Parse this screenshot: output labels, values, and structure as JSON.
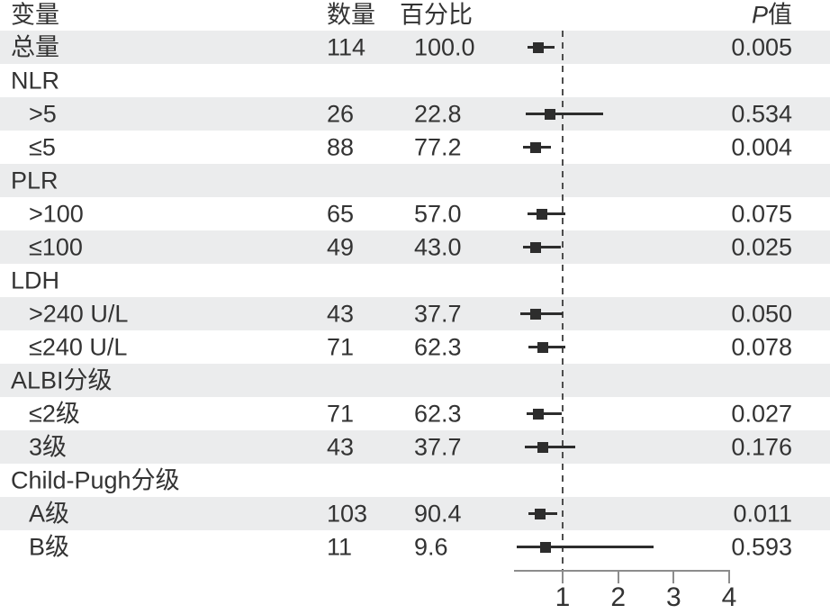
{
  "colors": {
    "row_stripe": "#ebeced",
    "text": "#333333",
    "marker": "#2d2d2d",
    "dashed_reference": "#4d4d4d",
    "axis": "#8c8c8c"
  },
  "header": {
    "variable": "变量",
    "count": "数量",
    "percent": "百分比",
    "p_italic": "P",
    "p_rest": "值"
  },
  "chart_data": {
    "type": "forest",
    "x_axis": {
      "ticks": [
        1,
        2,
        3,
        4
      ],
      "reference_line": 1
    },
    "legend": "none",
    "rows": [
      {
        "label": "总量",
        "indent": false,
        "group": false,
        "shaded": true,
        "count": "114",
        "percent": "100.0",
        "p": "0.005",
        "estimate": 0.57,
        "ci_low": 0.37,
        "ci_high": 0.85
      },
      {
        "label": "NLR",
        "indent": false,
        "group": true,
        "shaded": false
      },
      {
        "label": ">5",
        "indent": true,
        "group": false,
        "shaded": true,
        "count": "26",
        "percent": "22.8",
        "p": "0.534",
        "estimate": 0.78,
        "ci_low": 0.34,
        "ci_high": 1.73
      },
      {
        "label": "≤5",
        "indent": true,
        "group": false,
        "shaded": false,
        "count": "88",
        "percent": "77.2",
        "p": "0.004",
        "estimate": 0.51,
        "ci_low": 0.29,
        "ci_high": 0.79
      },
      {
        "label": "PLR",
        "indent": false,
        "group": true,
        "shaded": true
      },
      {
        "label": ">100",
        "indent": true,
        "group": false,
        "shaded": false,
        "count": "65",
        "percent": "57.0",
        "p": "0.075",
        "estimate": 0.63,
        "ci_low": 0.36,
        "ci_high": 1.05
      },
      {
        "label": "≤100",
        "indent": true,
        "group": false,
        "shaded": true,
        "count": "49",
        "percent": "43.0",
        "p": "0.025",
        "estimate": 0.51,
        "ci_low": 0.29,
        "ci_high": 0.96
      },
      {
        "label": "LDH",
        "indent": false,
        "group": true,
        "shaded": false
      },
      {
        "label": ">240 U/L",
        "indent": true,
        "group": false,
        "shaded": true,
        "count": "43",
        "percent": "37.7",
        "p": "0.050",
        "estimate": 0.51,
        "ci_low": 0.24,
        "ci_high": 1.0
      },
      {
        "label": "≤240 U/L",
        "indent": true,
        "group": false,
        "shaded": false,
        "count": "71",
        "percent": "62.3",
        "p": "0.078",
        "estimate": 0.65,
        "ci_low": 0.39,
        "ci_high": 1.05
      },
      {
        "label": "ALBI分级",
        "indent": false,
        "group": true,
        "shaded": true
      },
      {
        "label": "≤2级",
        "indent": true,
        "group": false,
        "shaded": false,
        "count": "71",
        "percent": "62.3",
        "p": "0.027",
        "estimate": 0.57,
        "ci_low": 0.35,
        "ci_high": 0.98
      },
      {
        "label": "3级",
        "indent": true,
        "group": false,
        "shaded": true,
        "count": "43",
        "percent": "37.7",
        "p": "0.176",
        "estimate": 0.65,
        "ci_low": 0.32,
        "ci_high": 1.23
      },
      {
        "label": "Child-Pugh分级",
        "indent": false,
        "group": true,
        "shaded": false
      },
      {
        "label": "A级",
        "indent": true,
        "group": false,
        "shaded": true,
        "count": "103",
        "percent": "90.4",
        "p": "0.011",
        "estimate": 0.59,
        "ci_low": 0.38,
        "ci_high": 0.91
      },
      {
        "label": "B级",
        "indent": true,
        "group": false,
        "shaded": false,
        "count": "11",
        "percent": "9.6",
        "p": "0.593",
        "estimate": 0.7,
        "ci_low": 0.17,
        "ci_high": 2.64
      }
    ]
  }
}
